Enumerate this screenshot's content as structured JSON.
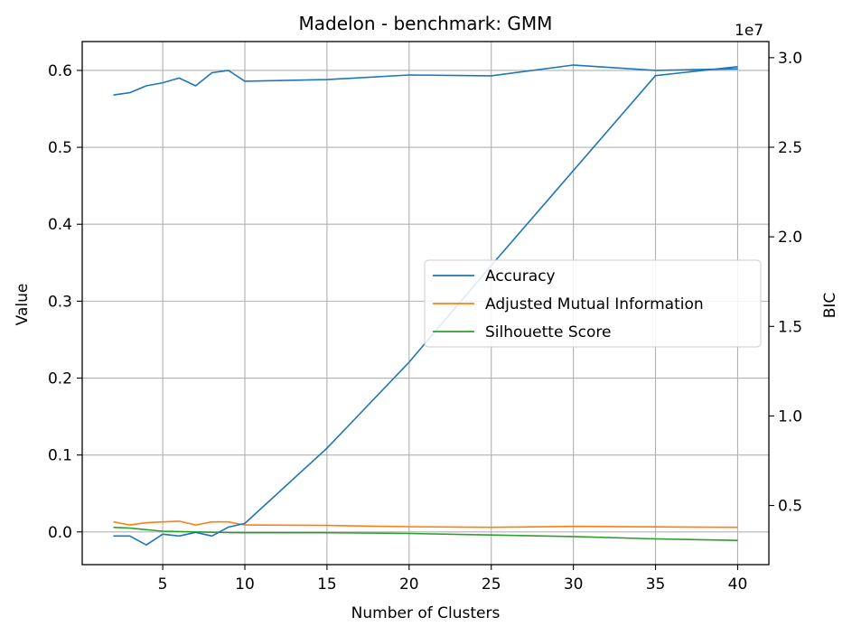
{
  "chart_data": {
    "type": "line",
    "title": "Madelon - benchmark: GMM",
    "xlabel": "Number of Clusters",
    "ylabel": "Value",
    "y2label": "BIC",
    "y2_offset_label": "1e7",
    "xlim": [
      0.1,
      41.9
    ],
    "ylim": [
      -0.0425,
      0.6375
    ],
    "y2lim": [
      1700000,
      30900000
    ],
    "x_ticks": [
      5,
      10,
      15,
      20,
      25,
      30,
      35,
      40
    ],
    "y_ticks": [
      0.0,
      0.1,
      0.2,
      0.3,
      0.4,
      0.5,
      0.6
    ],
    "y2_ticks": [
      5000000,
      10000000,
      15000000,
      20000000,
      25000000,
      30000000
    ],
    "x_tick_labels": [
      "5",
      "10",
      "15",
      "20",
      "25",
      "30",
      "35",
      "40"
    ],
    "y_tick_labels": [
      "0.0",
      "0.1",
      "0.2",
      "0.3",
      "0.4",
      "0.5",
      "0.6"
    ],
    "y2_tick_labels": [
      "0.5",
      "1.0",
      "1.5",
      "2.0",
      "2.5",
      "3.0"
    ],
    "grid": true,
    "legend_position": "center-right",
    "x": [
      2,
      3,
      4,
      5,
      6,
      7,
      8,
      9,
      10,
      15,
      20,
      25,
      30,
      35,
      40
    ],
    "series": [
      {
        "name": "Accuracy",
        "axis": "left",
        "color": "#1f77b4",
        "values": [
          0.568,
          0.571,
          0.58,
          0.584,
          0.59,
          0.58,
          0.597,
          0.6,
          0.586,
          0.588,
          0.594,
          0.593,
          0.607,
          0.6,
          0.602
        ]
      },
      {
        "name": "Adjusted Mutual Information",
        "axis": "left",
        "color": "#ff7f0e",
        "values": [
          0.013,
          0.009,
          0.012,
          0.013,
          0.014,
          0.009,
          0.013,
          0.013,
          0.009,
          0.0085,
          0.0068,
          0.006,
          0.0072,
          0.0066,
          0.006
        ]
      },
      {
        "name": "Silhouette Score",
        "axis": "left",
        "color": "#2ca02c",
        "values": [
          0.006,
          0.005,
          0.003,
          0.001,
          0.0005,
          0.0,
          -0.0005,
          -0.0008,
          -0.001,
          -0.001,
          -0.002,
          -0.004,
          -0.006,
          -0.009,
          -0.011
        ]
      },
      {
        "axis": "right",
        "color": "#1f77b4",
        "values": [
          3300000,
          3300000,
          2800000,
          3400000,
          3300000,
          3500000,
          3300000,
          3800000,
          4000000,
          8200000,
          13000000,
          18400000,
          23700000,
          29000000,
          29500000
        ]
      }
    ]
  }
}
